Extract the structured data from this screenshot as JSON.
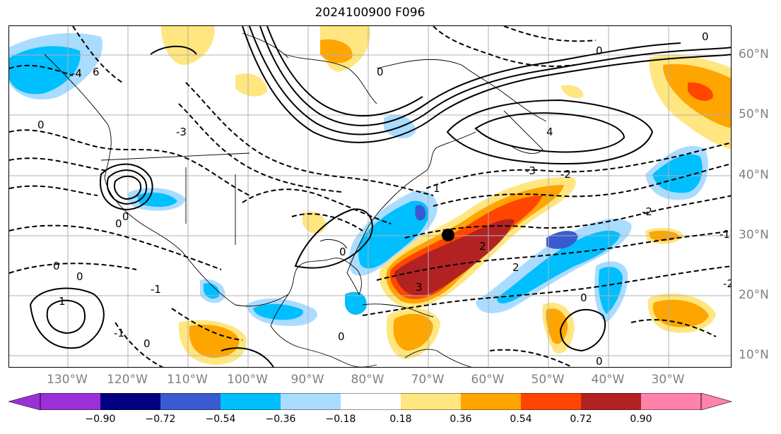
{
  "title": "2024100900 F096",
  "lon_labels": [
    "130°W",
    "120°W",
    "110°W",
    "100°W",
    "90°W",
    "80°W",
    "70°W",
    "60°W",
    "50°W",
    "40°W",
    "30°W"
  ],
  "lat_labels": [
    "60°N",
    "50°N",
    "40°N",
    "30°N",
    "20°N",
    "10°N"
  ],
  "colorbar": {
    "ticks": [
      "−0.90",
      "−0.72",
      "−0.54",
      "−0.36",
      "−0.18",
      "0.18",
      "0.36",
      "0.54",
      "0.72",
      "0.90"
    ],
    "colors": [
      "#9b30d9",
      "#000080",
      "#3a5bd0",
      "#00bfff",
      "#aadcff",
      "#ffffff",
      "#ffe680",
      "#ffa500",
      "#ff4500",
      "#b22222",
      "#ff82ab"
    ]
  },
  "contour_labels": [
    "0",
    "1",
    "2",
    "3",
    "4",
    "6",
    "-1",
    "-2",
    "-3",
    "-4"
  ],
  "marker": "storm-center-dot"
}
